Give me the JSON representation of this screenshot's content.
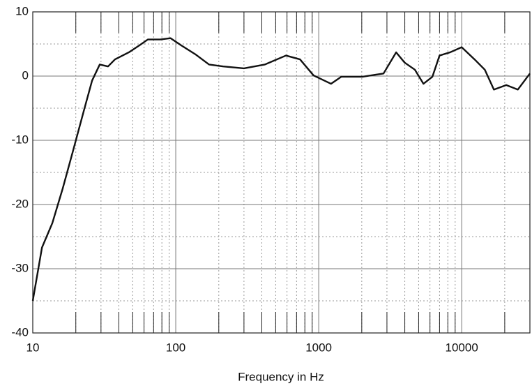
{
  "chart_data": {
    "type": "line",
    "xlabel": "Frequency in Hz",
    "log_x": true,
    "grid": true,
    "xlim": [
      10,
      30000
    ],
    "xticks": [
      10,
      100,
      1000,
      10000
    ],
    "ylim": [
      -40,
      10
    ],
    "yticks": [
      -40,
      -30,
      -20,
      -10,
      0,
      10
    ],
    "x": [
      10,
      11.6,
      13.7,
      16.2,
      19.2,
      22.7,
      26,
      29.4,
      33.6,
      37.6,
      47,
      55.8,
      63.8,
      78,
      92,
      109,
      137,
      171,
      215,
      300,
      420,
      590,
      740,
      920,
      1220,
      1440,
      2020,
      2840,
      3480,
      3990,
      4700,
      5400,
      6240,
      7000,
      8300,
      10000,
      12300,
      14500,
      16800,
      20500,
      24700,
      30000
    ],
    "series": [
      {
        "color": "#111111",
        "values": [
          -35,
          -26.7,
          -22.9,
          -17.5,
          -11.5,
          -5.5,
          -0.7,
          1.8,
          1.5,
          2.6,
          3.7,
          4.8,
          5.7,
          5.7,
          5.9,
          4.8,
          3.4,
          1.8,
          1.5,
          1.2,
          1.8,
          3.2,
          2.6,
          0.1,
          -1.2,
          -0.1,
          -0.1,
          0.4,
          3.7,
          2.1,
          1.0,
          -1.2,
          -0.1,
          3.2,
          3.7,
          4.5,
          2.6,
          1.0,
          -2.1,
          -1.4,
          -2.1,
          0.4
        ]
      }
    ]
  }
}
